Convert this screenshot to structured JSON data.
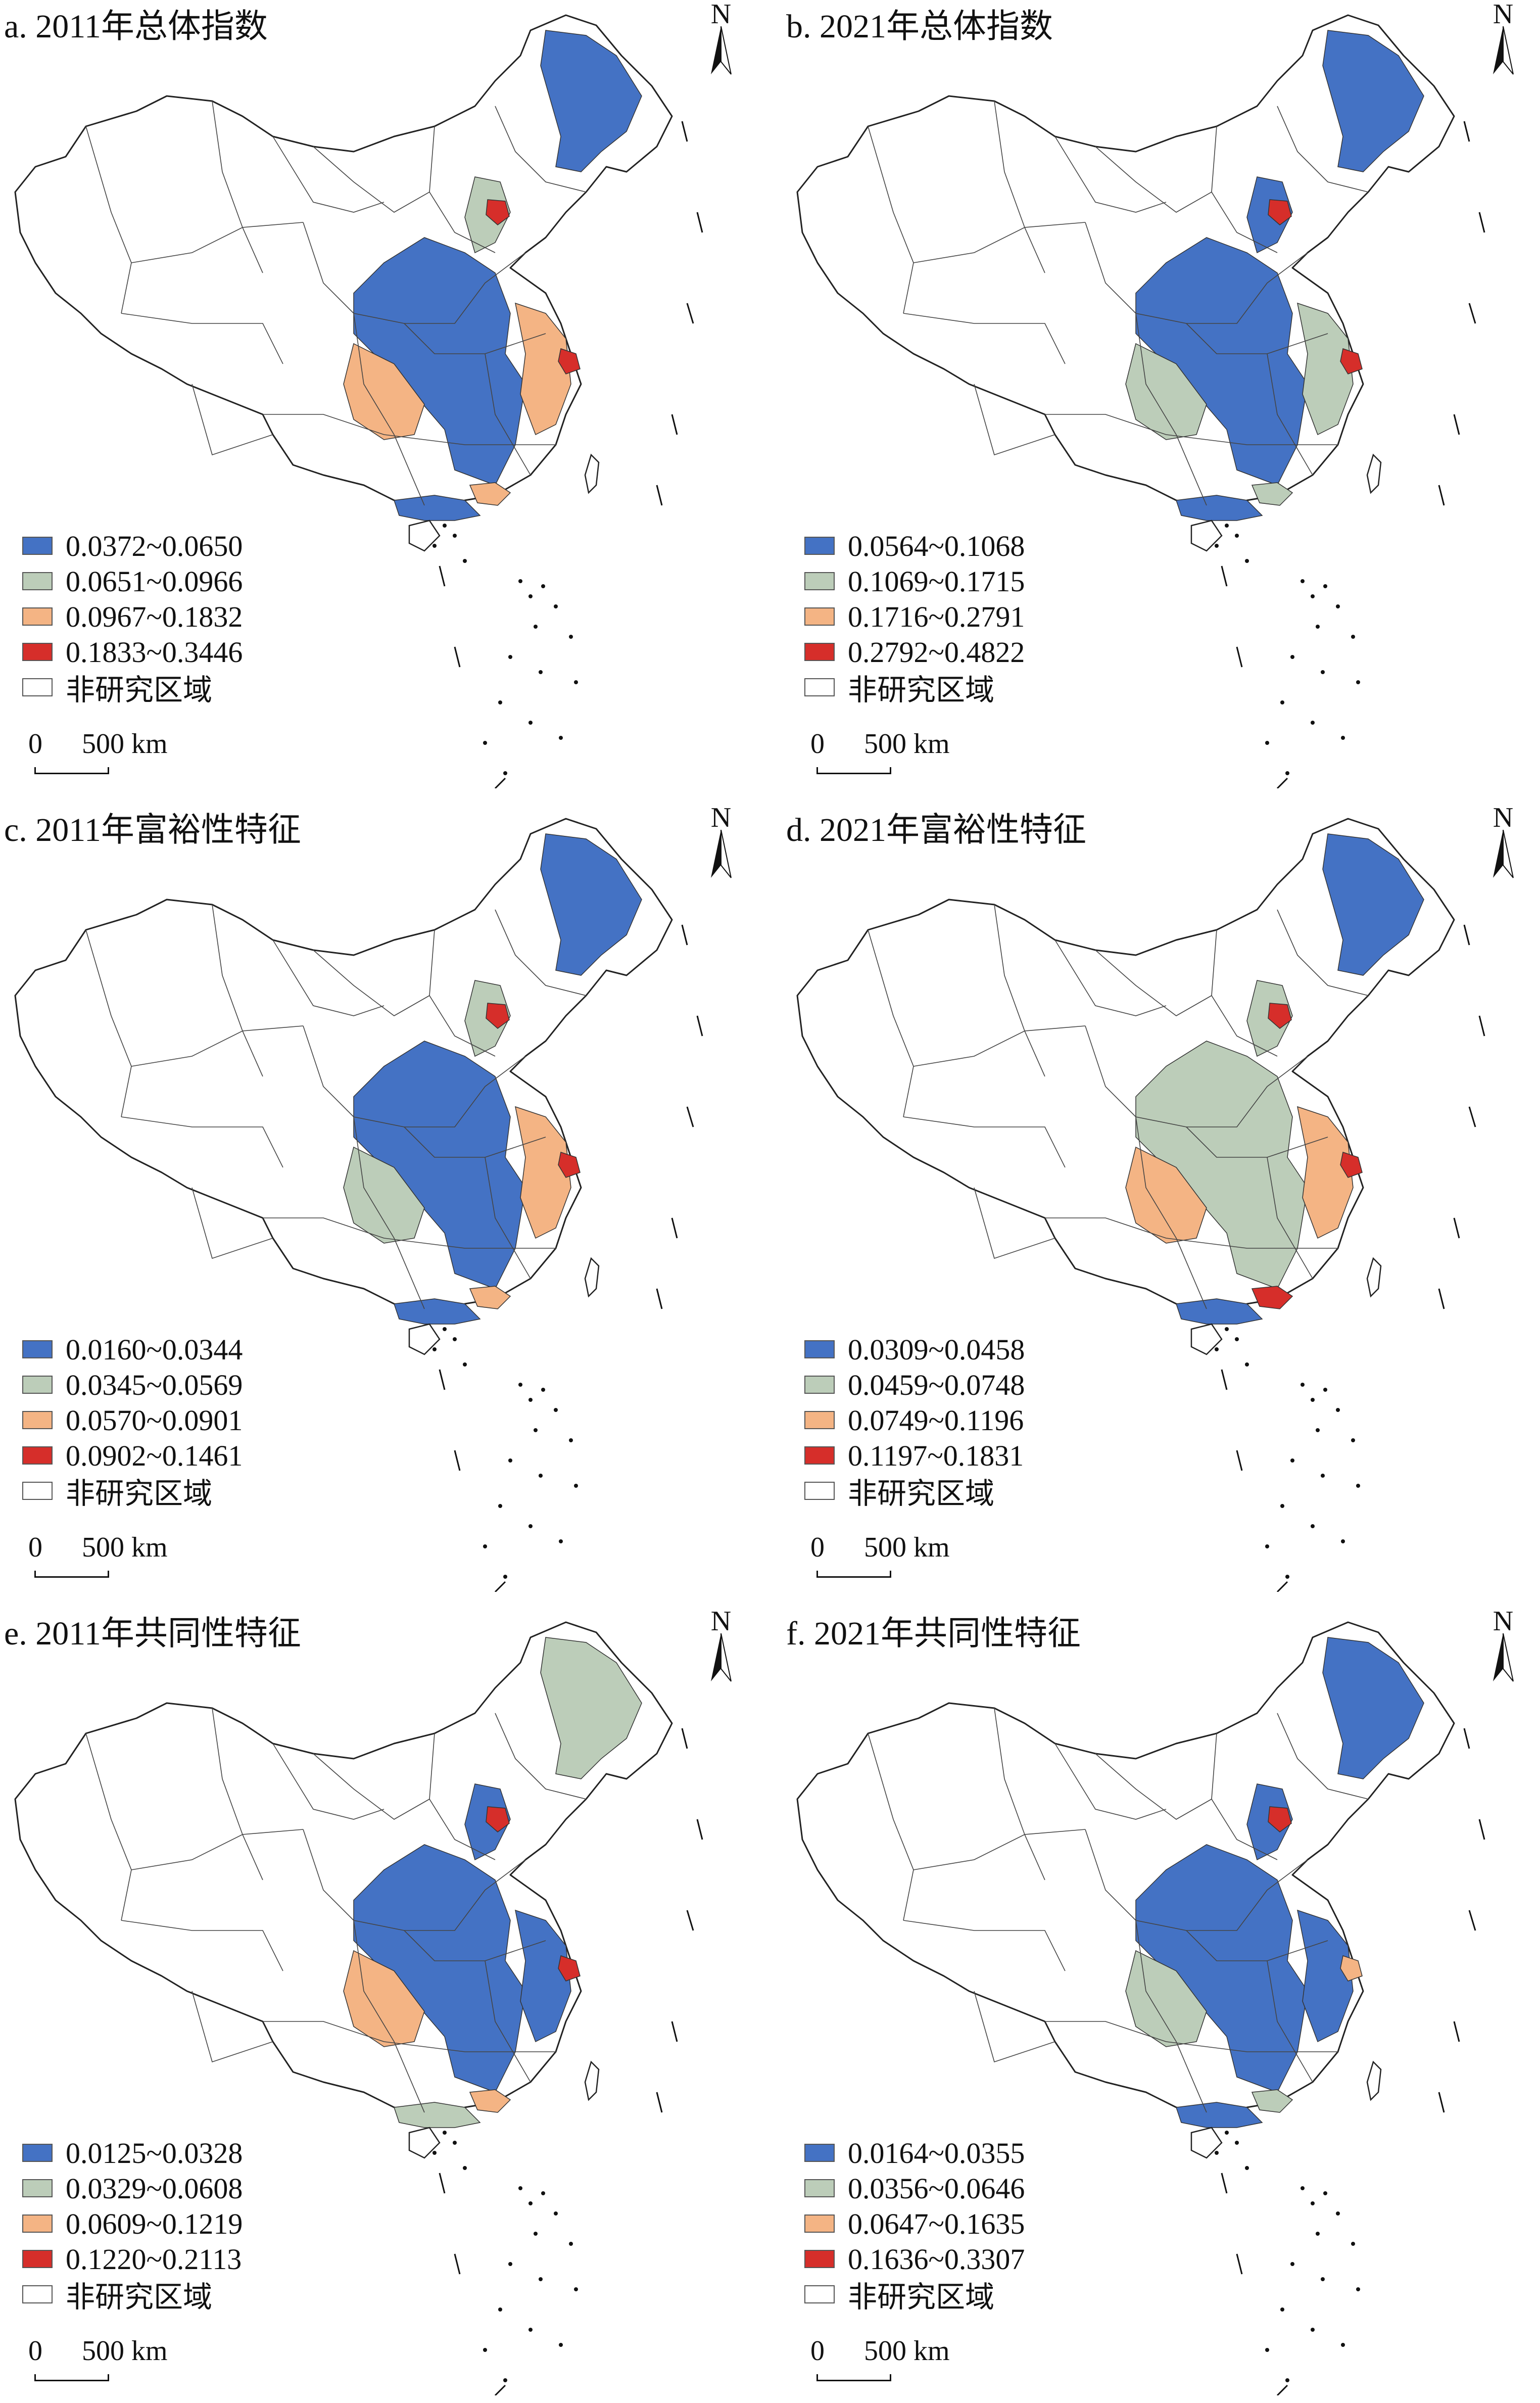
{
  "colors": {
    "class1": "#4472c4",
    "class2": "#bccdb9",
    "class3": "#f4b484",
    "class4": "#d62e2a",
    "non_study": "#ffffff",
    "boundary": "#222222"
  },
  "panels": [
    {
      "title": "a. 2011年总体指数",
      "north": "N",
      "legend": [
        "0.0372~0.0650",
        "0.0651~0.0966",
        "0.0967~0.1832",
        "0.1833~0.3446"
      ],
      "non_study_label": "非研究区域",
      "scale": {
        "zero": "0",
        "text": "500 km"
      },
      "regions": {
        "northeast": 1,
        "beijing": 4,
        "hebei": 2,
        "central": 1,
        "west": 3,
        "east": 3,
        "shanghai": 4,
        "south": 1,
        "guangdong": 3
      }
    },
    {
      "title": "b. 2021年总体指数",
      "north": "N",
      "legend": [
        "0.0564~0.1068",
        "0.1069~0.1715",
        "0.1716~0.2791",
        "0.2792~0.4822"
      ],
      "non_study_label": "非研究区域",
      "scale": {
        "zero": "0",
        "text": "500 km"
      },
      "regions": {
        "northeast": 1,
        "beijing": 4,
        "hebei": 1,
        "central": 1,
        "west": 2,
        "east": 2,
        "shanghai": 4,
        "south": 1,
        "guangdong": 2
      }
    },
    {
      "title": "c. 2011年富裕性特征",
      "north": "N",
      "legend": [
        "0.0160~0.0344",
        "0.0345~0.0569",
        "0.0570~0.0901",
        "0.0902~0.1461"
      ],
      "non_study_label": "非研究区域",
      "scale": {
        "zero": "0",
        "text": "500 km"
      },
      "regions": {
        "northeast": 1,
        "beijing": 4,
        "hebei": 2,
        "central": 1,
        "west": 2,
        "east": 3,
        "shanghai": 4,
        "south": 1,
        "guangdong": 3
      }
    },
    {
      "title": "d. 2021年富裕性特征",
      "north": "N",
      "legend": [
        "0.0309~0.0458",
        "0.0459~0.0748",
        "0.0749~0.1196",
        "0.1197~0.1831"
      ],
      "non_study_label": "非研究区域",
      "scale": {
        "zero": "0",
        "text": "500 km"
      },
      "regions": {
        "northeast": 1,
        "beijing": 4,
        "hebei": 2,
        "central": 2,
        "west": 3,
        "east": 3,
        "shanghai": 4,
        "south": 1,
        "guangdong": 4
      }
    },
    {
      "title": "e. 2011年共同性特征",
      "north": "N",
      "legend": [
        "0.0125~0.0328",
        "0.0329~0.0608",
        "0.0609~0.1219",
        "0.1220~0.2113"
      ],
      "non_study_label": "非研究区域",
      "scale": {
        "zero": "0",
        "text": "500 km"
      },
      "regions": {
        "northeast": 2,
        "beijing": 4,
        "hebei": 1,
        "central": 1,
        "west": 3,
        "east": 1,
        "shanghai": 4,
        "south": 2,
        "guangdong": 3
      }
    },
    {
      "title": "f. 2021年共同性特征",
      "north": "N",
      "legend": [
        "0.0164~0.0355",
        "0.0356~0.0646",
        "0.0647~0.1635",
        "0.1636~0.3307"
      ],
      "non_study_label": "非研究区域",
      "scale": {
        "zero": "0",
        "text": "500 km"
      },
      "regions": {
        "northeast": 1,
        "beijing": 4,
        "hebei": 1,
        "central": 1,
        "west": 2,
        "east": 1,
        "shanghai": 3,
        "south": 1,
        "guangdong": 2
      }
    }
  ]
}
